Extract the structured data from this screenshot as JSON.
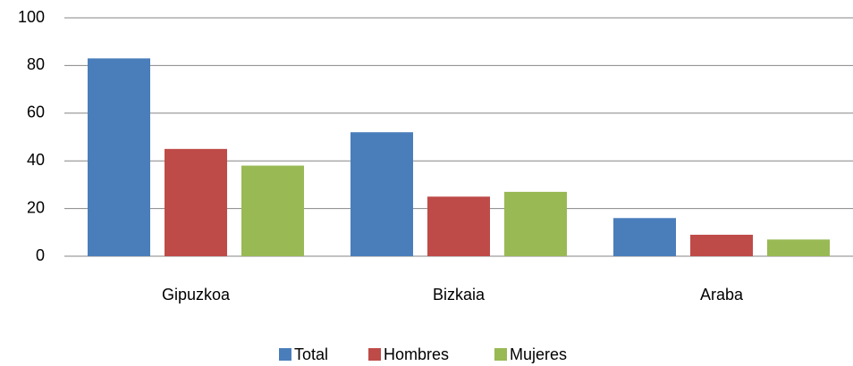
{
  "chart_data": {
    "type": "bar",
    "categories": [
      "Gipuzkoa",
      "Bizkaia",
      "Araba"
    ],
    "series": [
      {
        "name": "Total",
        "color": "#4a7ebb",
        "values": [
          83,
          52,
          16
        ]
      },
      {
        "name": "Hombres",
        "color": "#be4b48",
        "values": [
          45,
          25,
          9
        ]
      },
      {
        "name": "Mujeres",
        "color": "#98b954",
        "values": [
          38,
          27,
          7
        ]
      }
    ],
    "ylim": [
      0,
      100
    ],
    "yticks": [
      0,
      20,
      40,
      60,
      80,
      100
    ],
    "grid": true,
    "legend": "bottom"
  }
}
